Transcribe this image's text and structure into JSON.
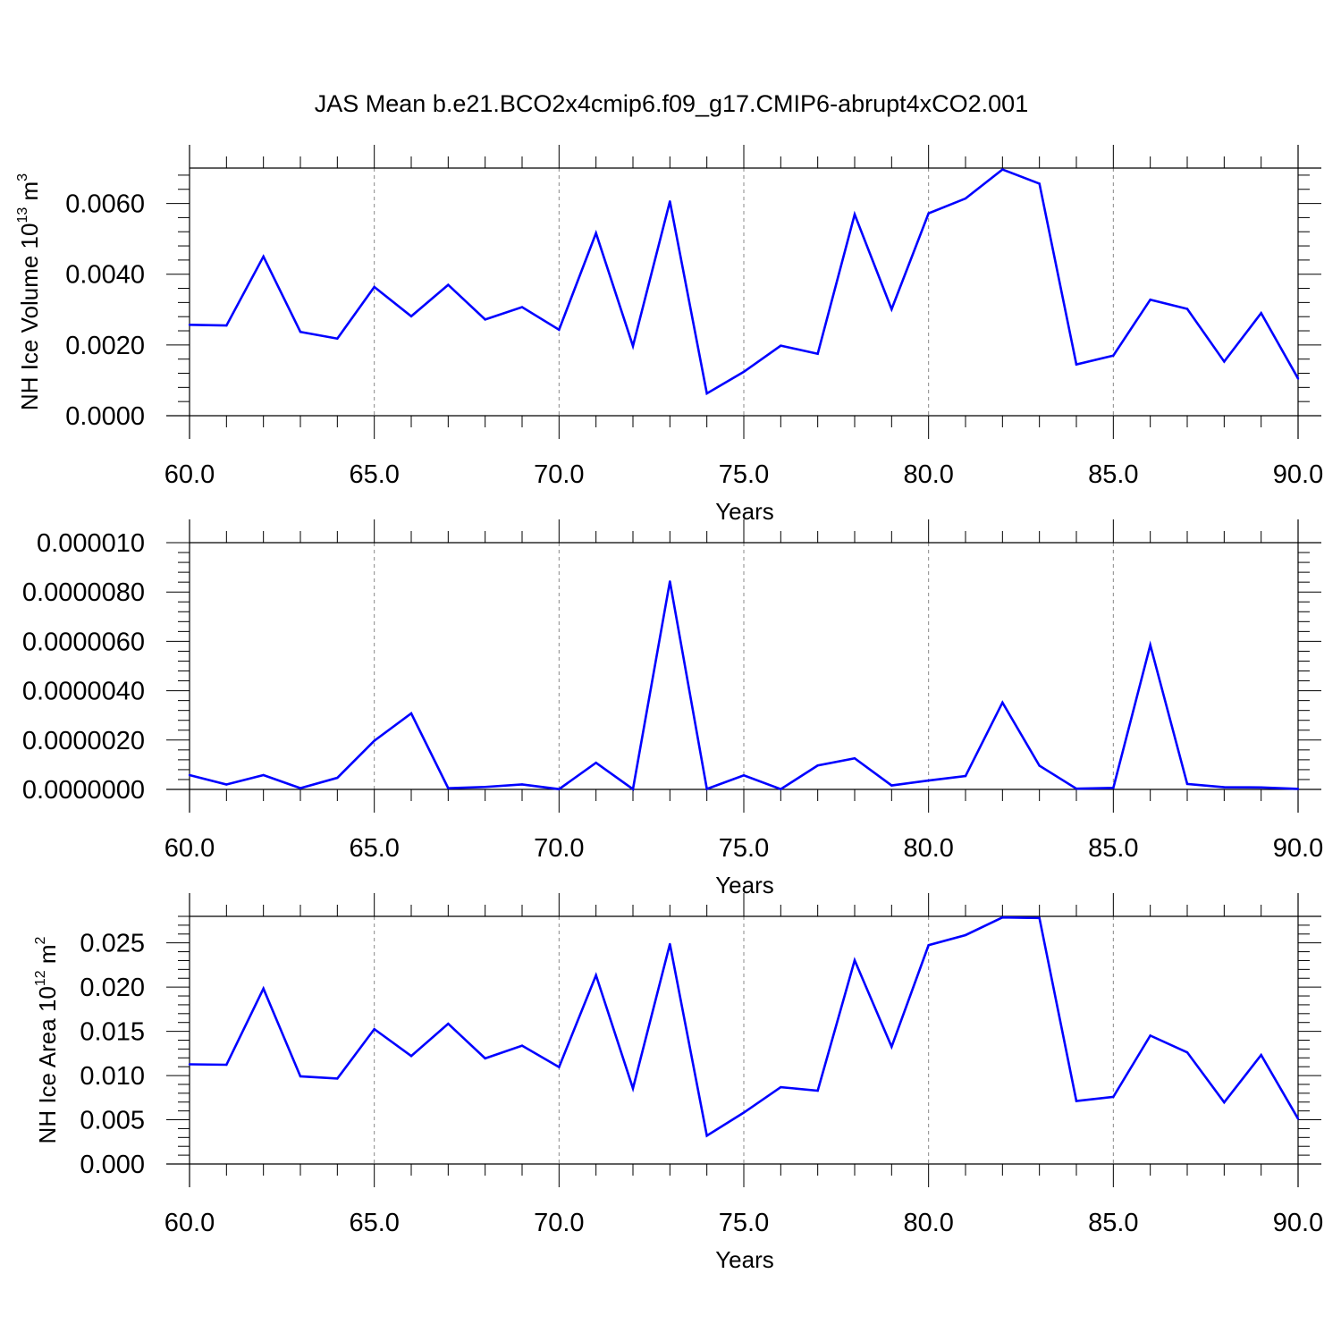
{
  "title": "JAS Mean b.e21.BCO2x4cmip6.f09_g17.CMIP6-abrupt4xCO2.001",
  "colors": {
    "line": "#0000ff",
    "axis": "#000000",
    "grid": "#888888",
    "background": "#ffffff"
  },
  "chart_data": [
    {
      "type": "line",
      "xlabel": "Years",
      "ylabel": {
        "prefix": "NH Ice Volume 10",
        "exponent": "13",
        "unit": " m",
        "unit_exponent": "3"
      },
      "xlim": [
        60,
        90
      ],
      "ylim": [
        0,
        0.007
      ],
      "x_ticks": [
        60,
        65,
        70,
        75,
        80,
        85,
        90
      ],
      "x_tick_labels": [
        "60.0",
        "65.0",
        "70.0",
        "75.0",
        "80.0",
        "85.0",
        "90.0"
      ],
      "y_ticks": [
        0,
        0.002,
        0.004,
        0.006
      ],
      "y_tick_labels": [
        "0.0000",
        "0.0020",
        "0.0040",
        "0.0060"
      ],
      "grid": "dashed vertical lines at major x ticks",
      "x": [
        60,
        61,
        62,
        63,
        64,
        65,
        66,
        67,
        68,
        69,
        70,
        71,
        72,
        73,
        74,
        75,
        76,
        77,
        78,
        79,
        80,
        81,
        82,
        83,
        84,
        85,
        86,
        87,
        88,
        89,
        90
      ],
      "series": [
        {
          "values": [
            0.00257,
            0.00255,
            0.0045,
            0.00237,
            0.00218,
            0.00364,
            0.00281,
            0.0037,
            0.00272,
            0.00307,
            0.00243,
            0.00516,
            0.00197,
            0.00606,
            0.00063,
            0.00124,
            0.00198,
            0.00175,
            0.00569,
            0.00301,
            0.00572,
            0.00614,
            0.00696,
            0.00656,
            0.00145,
            0.0017,
            0.00328,
            0.00302,
            0.00153,
            0.0029,
            0.00105
          ]
        }
      ]
    },
    {
      "type": "line",
      "xlabel": "Years",
      "ylabel": null,
      "xlim": [
        60,
        90
      ],
      "ylim": [
        0,
        1e-05
      ],
      "x_ticks": [
        60,
        65,
        70,
        75,
        80,
        85,
        90
      ],
      "x_tick_labels": [
        "60.0",
        "65.0",
        "70.0",
        "75.0",
        "80.0",
        "85.0",
        "90.0"
      ],
      "y_ticks": [
        0,
        2e-06,
        4e-06,
        6e-06,
        8e-06,
        1e-05
      ],
      "y_tick_labels": [
        "0.0000000",
        "0.0000020",
        "0.0000040",
        "0.0000060",
        "0.0000080",
        "0.000010"
      ],
      "grid": "dashed vertical lines at major x ticks",
      "x": [
        60,
        61,
        62,
        63,
        64,
        65,
        66,
        67,
        68,
        69,
        70,
        71,
        72,
        73,
        74,
        75,
        76,
        77,
        78,
        79,
        80,
        81,
        82,
        83,
        84,
        85,
        86,
        87,
        88,
        89,
        90
      ],
      "series": [
        {
          "values": [
            5.8e-07,
            2e-07,
            5.8e-07,
            5e-08,
            4.7e-07,
            1.97e-06,
            3.08e-06,
            5e-08,
            1e-07,
            2e-07,
            1e-08,
            1.08e-06,
            1e-08,
            8.43e-06,
            2e-08,
            5.7e-07,
            1e-08,
            9.7e-07,
            1.26e-06,
            1.6e-07,
            3.6e-07,
            5.4e-07,
            3.52e-06,
            9.6e-07,
            3e-08,
            6e-08,
            5.85e-06,
            2.2e-07,
            9e-08,
            8e-08,
            2e-08
          ]
        }
      ]
    },
    {
      "type": "line",
      "xlabel": "Years",
      "ylabel": {
        "prefix": "NH Ice Area 10",
        "exponent": "12",
        "unit": " m",
        "unit_exponent": "2"
      },
      "xlim": [
        60,
        90
      ],
      "ylim": [
        0,
        0.028
      ],
      "x_ticks": [
        60,
        65,
        70,
        75,
        80,
        85,
        90
      ],
      "x_tick_labels": [
        "60.0",
        "65.0",
        "70.0",
        "75.0",
        "80.0",
        "85.0",
        "90.0"
      ],
      "y_ticks": [
        0,
        0.005,
        0.01,
        0.015,
        0.02,
        0.025
      ],
      "y_tick_labels": [
        "0.000",
        "0.005",
        "0.010",
        "0.015",
        "0.020",
        "0.025"
      ],
      "grid": "dashed vertical lines at major x ticks",
      "x": [
        60,
        61,
        62,
        63,
        64,
        65,
        66,
        67,
        68,
        69,
        70,
        71,
        72,
        73,
        74,
        75,
        76,
        77,
        78,
        79,
        80,
        81,
        82,
        83,
        84,
        85,
        86,
        87,
        88,
        89,
        90
      ],
      "series": [
        {
          "values": [
            0.01127,
            0.01122,
            0.01983,
            0.00991,
            0.00966,
            0.01525,
            0.01221,
            0.01586,
            0.01194,
            0.01338,
            0.01096,
            0.02134,
            0.00855,
            0.02487,
            0.0032,
            0.00581,
            0.00869,
            0.00829,
            0.02303,
            0.01326,
            0.02474,
            0.02588,
            0.02788,
            0.02781,
            0.00712,
            0.00759,
            0.01452,
            0.01262,
            0.00697,
            0.01232,
            0.00511
          ]
        }
      ]
    }
  ]
}
